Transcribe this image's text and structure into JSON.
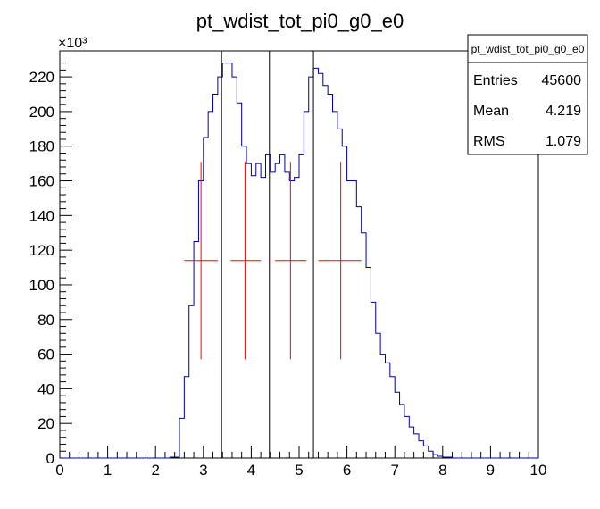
{
  "chart_data": {
    "type": "histogram",
    "title": "pt_wdist_tot_pi0_g0_e0",
    "xlim": [
      0,
      10
    ],
    "ylim": [
      0,
      235
    ],
    "y_exponent_label": "×10³",
    "xticks": [
      "0",
      "1",
      "2",
      "3",
      "4",
      "5",
      "6",
      "7",
      "8",
      "9",
      "10"
    ],
    "yticks": [
      "0",
      "20",
      "40",
      "60",
      "80",
      "100",
      "120",
      "140",
      "160",
      "180",
      "200",
      "220"
    ],
    "bin_width": 0.1,
    "x_start": 0,
    "hist_values": [
      0,
      0,
      0,
      0,
      0,
      0,
      0,
      0,
      0,
      0,
      0,
      0,
      0,
      0,
      0,
      0,
      0,
      0,
      0,
      0,
      0,
      0,
      0,
      0.5,
      0.5,
      23,
      47,
      88,
      125,
      160,
      185,
      200,
      210,
      220,
      228,
      228,
      220,
      205,
      180,
      170,
      163,
      170,
      162,
      175,
      165,
      170,
      175,
      165,
      160,
      162,
      175,
      200,
      220,
      225,
      222,
      215,
      210,
      200,
      190,
      180,
      160,
      160,
      145,
      130,
      110,
      90,
      72,
      60,
      55,
      47,
      38,
      31,
      24,
      18,
      14,
      10,
      7,
      4,
      2,
      1,
      0.5,
      0.5,
      0,
      0,
      0,
      0,
      0,
      0,
      0,
      0,
      0,
      0,
      0,
      0,
      0,
      0,
      0,
      0,
      0,
      0
    ],
    "vertical_lines": [
      3.38,
      4.38,
      5.3
    ],
    "error_crosses": [
      {
        "x": 2.95,
        "xlow": 2.6,
        "xhigh": 3.3,
        "y": 114,
        "ylow": 57,
        "yhigh": 171
      },
      {
        "x": 3.87,
        "xlow": 3.57,
        "xhigh": 4.2,
        "y": 114,
        "ylow": 57,
        "yhigh": 171
      },
      {
        "x": 4.82,
        "xlow": 4.5,
        "xhigh": 5.15,
        "y": 114,
        "ylow": 57,
        "yhigh": 171
      },
      {
        "x": 5.87,
        "xlow": 5.4,
        "xhigh": 6.3,
        "y": 114,
        "ylow": 57,
        "yhigh": 171
      }
    ],
    "colors": {
      "histogram": "#000099",
      "markers": "#ff0000",
      "lines": "#000000"
    }
  },
  "stats": {
    "title": "pt_wdist_tot_pi0_g0_e0",
    "rows": [
      {
        "label": "Entries",
        "value": "45600"
      },
      {
        "label": "Mean",
        "value": "4.219"
      },
      {
        "label": "RMS",
        "value": "1.079"
      }
    ]
  }
}
